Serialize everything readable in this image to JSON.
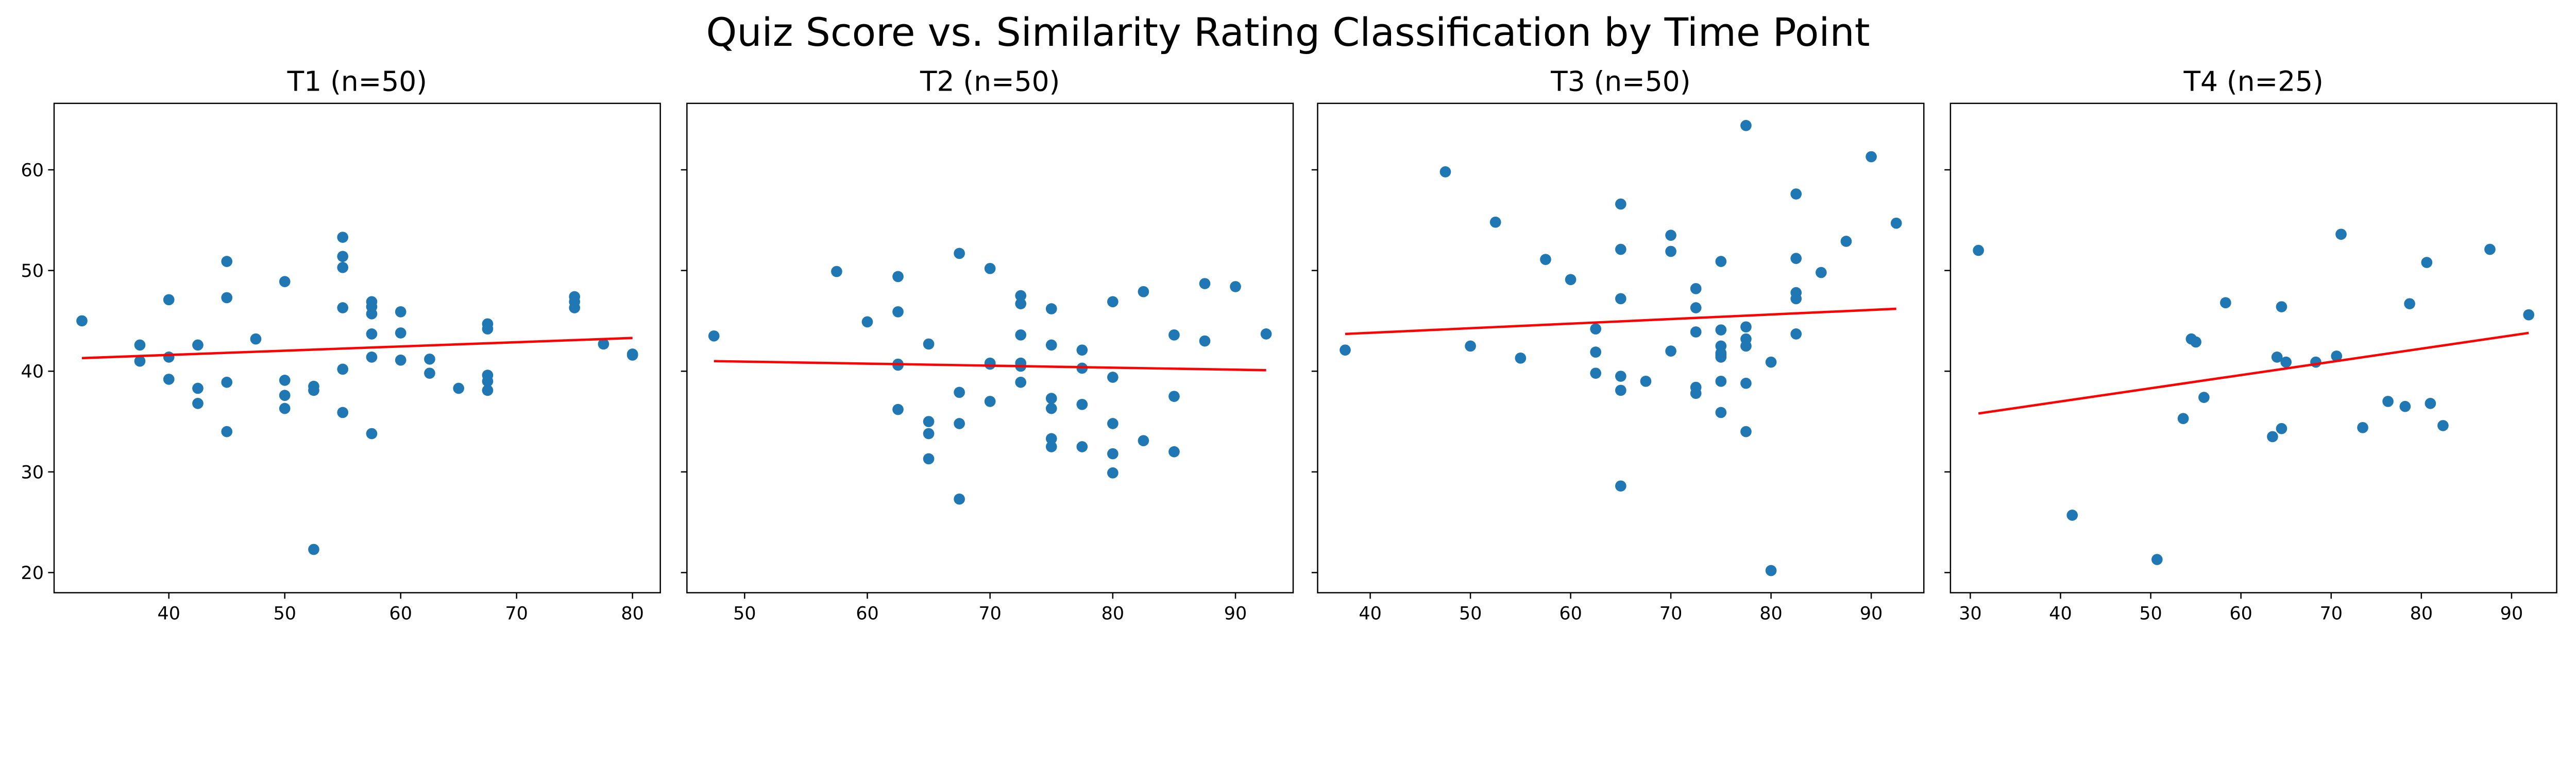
{
  "title": "Quiz Score vs. Similarity Rating Classification by Time Point",
  "colors": {
    "points": "#1f77b4",
    "fit_line": "#ff0000",
    "axes": "#000000"
  },
  "chart_data": [
    {
      "type": "scatter",
      "title": "T1 (n=50)",
      "xlabel": "",
      "ylabel": "",
      "xlim": [
        30.1,
        82.4
      ],
      "ylim": [
        18,
        66.6
      ],
      "xticks": [
        40,
        50,
        60,
        70,
        80
      ],
      "yticks": [
        20,
        30,
        40,
        50,
        60
      ],
      "show_yticklabels": true,
      "grid": false,
      "points": [
        [
          32.5,
          45.0
        ],
        [
          37.5,
          42.6
        ],
        [
          37.5,
          41.0
        ],
        [
          40,
          47.1
        ],
        [
          40,
          41.4
        ],
        [
          40,
          39.2
        ],
        [
          42.5,
          42.6
        ],
        [
          42.5,
          38.3
        ],
        [
          42.5,
          36.8
        ],
        [
          45,
          50.9
        ],
        [
          45,
          47.3
        ],
        [
          45,
          38.9
        ],
        [
          45,
          34.0
        ],
        [
          47.5,
          43.2
        ],
        [
          50,
          48.9
        ],
        [
          50,
          39.1
        ],
        [
          50,
          37.6
        ],
        [
          50,
          36.3
        ],
        [
          52.5,
          38.5
        ],
        [
          52.5,
          38.1
        ],
        [
          52.5,
          22.3
        ],
        [
          55,
          53.3
        ],
        [
          55,
          51.4
        ],
        [
          55,
          50.3
        ],
        [
          55,
          46.3
        ],
        [
          55,
          40.2
        ],
        [
          55,
          35.9
        ],
        [
          57.5,
          46.9
        ],
        [
          57.5,
          46.4
        ],
        [
          57.5,
          45.7
        ],
        [
          57.5,
          43.7
        ],
        [
          57.5,
          41.4
        ],
        [
          57.5,
          33.8
        ],
        [
          60,
          45.9
        ],
        [
          60,
          43.8
        ],
        [
          60,
          41.1
        ],
        [
          62.5,
          41.2
        ],
        [
          62.5,
          39.8
        ],
        [
          65,
          38.3
        ],
        [
          67.5,
          44.7
        ],
        [
          67.5,
          44.2
        ],
        [
          67.5,
          39.6
        ],
        [
          67.5,
          39.0
        ],
        [
          67.5,
          38.1
        ],
        [
          75,
          47.4
        ],
        [
          75,
          46.9
        ],
        [
          75,
          46.3
        ],
        [
          77.5,
          42.7
        ],
        [
          80,
          41.7
        ],
        [
          80,
          41.6
        ]
      ],
      "fit_line": [
        [
          32.5,
          41.3
        ],
        [
          80,
          43.3
        ]
      ]
    },
    {
      "type": "scatter",
      "title": "T2 (n=50)",
      "xlabel": "",
      "ylabel": "",
      "xlim": [
        45.3,
        94.7
      ],
      "ylim": [
        18,
        66.6
      ],
      "xticks": [
        50,
        60,
        70,
        80,
        90
      ],
      "yticks": [
        20,
        30,
        40,
        50,
        60
      ],
      "show_yticklabels": false,
      "grid": false,
      "points": [
        [
          47.5,
          43.5
        ],
        [
          57.5,
          49.9
        ],
        [
          60,
          44.9
        ],
        [
          62.5,
          49.4
        ],
        [
          62.5,
          45.9
        ],
        [
          62.5,
          40.7
        ],
        [
          62.5,
          40.6
        ],
        [
          62.5,
          36.2
        ],
        [
          65,
          42.7
        ],
        [
          65,
          35.0
        ],
        [
          65,
          33.8
        ],
        [
          65,
          31.3
        ],
        [
          67.5,
          51.7
        ],
        [
          67.5,
          37.9
        ],
        [
          67.5,
          34.8
        ],
        [
          67.5,
          27.3
        ],
        [
          70,
          50.2
        ],
        [
          70,
          40.8
        ],
        [
          70,
          37.0
        ],
        [
          72.5,
          47.5
        ],
        [
          72.5,
          46.7
        ],
        [
          72.5,
          43.6
        ],
        [
          72.5,
          40.8
        ],
        [
          72.5,
          40.5
        ],
        [
          72.5,
          38.9
        ],
        [
          75,
          46.2
        ],
        [
          75,
          42.6
        ],
        [
          75,
          37.3
        ],
        [
          75,
          36.3
        ],
        [
          75,
          33.3
        ],
        [
          75,
          32.5
        ],
        [
          77.5,
          42.1
        ],
        [
          77.5,
          40.3
        ],
        [
          77.5,
          36.7
        ],
        [
          77.5,
          32.5
        ],
        [
          80,
          46.9
        ],
        [
          80,
          39.4
        ],
        [
          80,
          34.8
        ],
        [
          80,
          31.8
        ],
        [
          80,
          29.9
        ],
        [
          82.5,
          47.9
        ],
        [
          82.5,
          33.1
        ],
        [
          85,
          43.6
        ],
        [
          85,
          37.5
        ],
        [
          85,
          32.0
        ],
        [
          87.5,
          48.7
        ],
        [
          87.5,
          43.0
        ],
        [
          90,
          48.4
        ],
        [
          92.5,
          43.7
        ],
        [
          70,
          40.7
        ]
      ],
      "fit_line": [
        [
          47.5,
          41.0
        ],
        [
          92.5,
          40.1
        ]
      ]
    },
    {
      "type": "scatter",
      "title": "T3 (n=50)",
      "xlabel": "",
      "ylabel": "",
      "xlim": [
        34.75,
        95.25
      ],
      "ylim": [
        18,
        66.6
      ],
      "xticks": [
        40,
        50,
        60,
        70,
        80,
        90
      ],
      "yticks": [
        20,
        30,
        40,
        50,
        60
      ],
      "show_yticklabels": false,
      "grid": false,
      "points": [
        [
          37.5,
          42.1
        ],
        [
          47.5,
          59.8
        ],
        [
          50,
          42.5
        ],
        [
          52.5,
          54.8
        ],
        [
          55,
          41.3
        ],
        [
          57.5,
          51.1
        ],
        [
          60,
          49.1
        ],
        [
          62.5,
          44.2
        ],
        [
          62.5,
          41.9
        ],
        [
          62.5,
          39.8
        ],
        [
          65,
          56.6
        ],
        [
          65,
          52.1
        ],
        [
          65,
          47.2
        ],
        [
          65,
          39.5
        ],
        [
          65,
          38.1
        ],
        [
          65,
          28.6
        ],
        [
          67.5,
          39.0
        ],
        [
          70,
          53.5
        ],
        [
          70,
          51.9
        ],
        [
          70,
          42.0
        ],
        [
          72.5,
          48.2
        ],
        [
          72.5,
          46.3
        ],
        [
          72.5,
          43.9
        ],
        [
          72.5,
          38.4
        ],
        [
          72.5,
          37.8
        ],
        [
          75,
          50.9
        ],
        [
          75,
          44.1
        ],
        [
          75,
          42.5
        ],
        [
          75,
          41.8
        ],
        [
          75,
          41.4
        ],
        [
          75,
          39.0
        ],
        [
          75,
          35.9
        ],
        [
          77.5,
          64.4
        ],
        [
          77.5,
          44.4
        ],
        [
          77.5,
          43.2
        ],
        [
          77.5,
          42.5
        ],
        [
          77.5,
          38.8
        ],
        [
          77.5,
          34.0
        ],
        [
          80,
          40.9
        ],
        [
          80,
          20.2
        ],
        [
          82.5,
          57.6
        ],
        [
          82.5,
          51.2
        ],
        [
          82.5,
          47.8
        ],
        [
          82.5,
          47.2
        ],
        [
          82.5,
          43.7
        ],
        [
          85,
          49.8
        ],
        [
          87.5,
          52.9
        ],
        [
          90,
          61.3
        ],
        [
          92.5,
          54.7
        ],
        [
          75,
          41.6
        ]
      ],
      "fit_line": [
        [
          37.5,
          43.7
        ],
        [
          92.5,
          46.2
        ]
      ]
    },
    {
      "type": "scatter",
      "title": "T4 (n=25)",
      "xlabel": "",
      "ylabel": "",
      "xlim": [
        27.8,
        95.0
      ],
      "ylim": [
        18,
        66.6
      ],
      "xticks": [
        30,
        40,
        50,
        60,
        70,
        80,
        90
      ],
      "yticks": [
        20,
        30,
        40,
        50,
        60
      ],
      "show_yticklabels": false,
      "grid": false,
      "points": [
        [
          30.9,
          52.0
        ],
        [
          41.3,
          25.7
        ],
        [
          50.7,
          21.3
        ],
        [
          53.6,
          35.3
        ],
        [
          54.5,
          43.2
        ],
        [
          55.0,
          42.9
        ],
        [
          55.9,
          37.4
        ],
        [
          58.3,
          46.8
        ],
        [
          63.5,
          33.5
        ],
        [
          64.0,
          41.4
        ],
        [
          64.5,
          46.4
        ],
        [
          64.5,
          34.3
        ],
        [
          65.0,
          40.9
        ],
        [
          68.3,
          40.9
        ],
        [
          70.6,
          41.5
        ],
        [
          71.1,
          53.6
        ],
        [
          73.5,
          34.4
        ],
        [
          76.3,
          37.0
        ],
        [
          78.2,
          36.5
        ],
        [
          78.7,
          46.7
        ],
        [
          80.6,
          50.8
        ],
        [
          81.0,
          36.8
        ],
        [
          82.4,
          34.6
        ],
        [
          87.6,
          52.1
        ],
        [
          91.9,
          45.6
        ]
      ],
      "fit_line": [
        [
          30.9,
          35.8
        ],
        [
          91.9,
          43.8
        ]
      ]
    }
  ]
}
